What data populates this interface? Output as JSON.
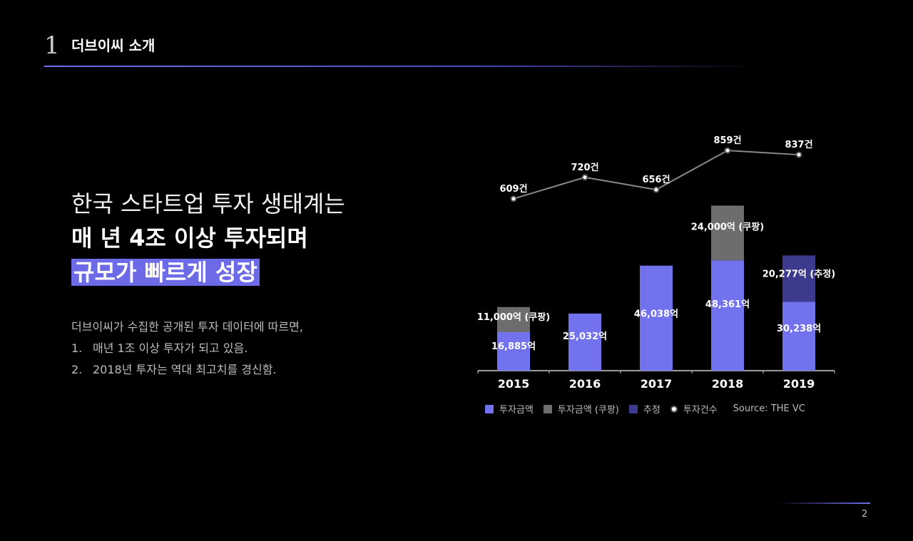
{
  "section": {
    "number": "1",
    "title": "더브이씨 소개"
  },
  "headline": {
    "line1": "한국 스타트업 투자 생태계는",
    "line2": "매 년 4조 이상 투자되며",
    "line3": "규모가 빠르게 성장"
  },
  "body": {
    "intro": "더브이씨가 수집한 공개된 투자 데이터에 따르면,",
    "items": [
      {
        "num": "1.",
        "text": "매년 1조 이상 투자가 되고 있음."
      },
      {
        "num": "2.",
        "text": "2018년 투자는 역대 최고치를 경신함."
      }
    ]
  },
  "colors": {
    "accent": "#6c6ae6",
    "bar": "#7272ee",
    "coupang": "#6d6d6d",
    "estimate": "#3b3a8c",
    "line": "#8a8a8a",
    "background": "#000000"
  },
  "chart_data": {
    "type": "bar",
    "categories": [
      "2015",
      "2016",
      "2017",
      "2018",
      "2019"
    ],
    "series": [
      {
        "name": "투자금액",
        "values": [
          16885,
          25032,
          46038,
          48361,
          30238
        ],
        "labels": [
          "16,885억",
          "25,032억",
          "46,038억",
          "48,361억",
          "30,238억"
        ]
      },
      {
        "name": "투자금액 (쿠팡)",
        "values": [
          11000,
          0,
          0,
          24000,
          0
        ],
        "labels": [
          "11,000억 (쿠팡)",
          "",
          "",
          "24,000억 (쿠팡)",
          ""
        ]
      },
      {
        "name": "추정",
        "values": [
          0,
          0,
          0,
          0,
          20277
        ],
        "labels": [
          "",
          "",
          "",
          "",
          "20,277억 (추정)"
        ]
      }
    ],
    "line_series": {
      "name": "투자건수",
      "values": [
        609,
        720,
        656,
        859,
        837
      ],
      "labels": [
        "609건",
        "720건",
        "656건",
        "859건",
        "837건"
      ]
    },
    "stacked": true,
    "ylim": [
      0,
      75000
    ],
    "line_ylim": [
      420,
      900
    ],
    "legend_position": "bottom",
    "source": "Source: THE VC"
  },
  "page": {
    "number": "2"
  }
}
